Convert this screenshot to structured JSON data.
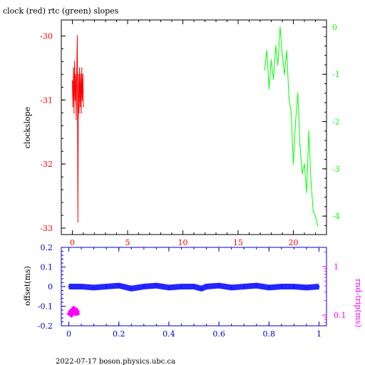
{
  "chart_data": [
    {
      "type": "line",
      "title": "clock (red) rtc (green) slopes",
      "xlabel": "",
      "ylabel": "clockslope",
      "y2label": "",
      "xlim": [
        -1,
        23
      ],
      "ylim": [
        -33.1,
        -29.75
      ],
      "y2lim": [
        -4.39,
        0.15
      ],
      "x_ticks": [
        "0",
        "5",
        "10",
        "15",
        "20"
      ],
      "y_ticks": [
        "-30",
        "-31",
        "-32",
        "-33"
      ],
      "y2_ticks": [
        "0",
        "-1",
        "-2",
        "-3",
        "-4"
      ],
      "colors": {
        "axes": "#000000",
        "clock": "#ff0000",
        "rtc": "#00ff00"
      },
      "series": [
        {
          "axis": "left",
          "x": [
            0.0,
            0.05,
            0.1,
            0.15,
            0.2,
            0.25,
            0.3,
            0.35,
            0.4,
            0.45,
            0.5,
            0.55,
            0.6,
            0.65,
            0.7,
            0.75,
            0.8,
            0.85,
            0.9,
            0.95,
            1.0
          ],
          "y": [
            -30.7,
            -31.1,
            -30.5,
            -31.2,
            -30.4,
            -31.0,
            -30.6,
            -31.3,
            -30.5,
            -30.0,
            -32.9,
            -30.6,
            -31.2,
            -30.5,
            -31.1,
            -30.6,
            -31.2,
            -30.5,
            -31.0,
            -30.6,
            -31.1
          ]
        },
        {
          "axis": "right",
          "x": [
            17.4,
            17.6,
            17.8,
            18.0,
            18.2,
            18.4,
            18.6,
            18.8,
            19.0,
            19.2,
            19.4,
            19.6,
            19.8,
            20.0,
            20.2,
            20.4,
            20.6,
            20.8,
            21.0,
            21.2,
            21.4,
            21.6,
            21.8,
            22.0,
            22.2
          ],
          "y": [
            -0.9,
            -0.5,
            -1.3,
            -0.7,
            -1.1,
            -0.4,
            -0.8,
            0.0,
            -0.6,
            -1.0,
            -0.5,
            -1.5,
            -1.8,
            -2.9,
            -2.0,
            -1.4,
            -2.5,
            -3.1,
            -2.9,
            -3.5,
            -2.2,
            -3.3,
            -3.9,
            -4.0,
            -4.2
          ]
        }
      ]
    },
    {
      "type": "scatter",
      "title": "",
      "xlabel": "",
      "ylabel": "offset(ms)",
      "y2label": "rnd-trip(ms)",
      "y2_scale": "log",
      "xlim": [
        -0.03,
        1.03
      ],
      "ylim": [
        -0.2,
        0.2
      ],
      "y2lim": [
        0.06,
        2.5
      ],
      "x_ticks": [
        "0",
        "0.2",
        "0.4",
        "0.6",
        "0.8",
        "1"
      ],
      "y_ticks": [
        "0.2",
        "0.1",
        "0",
        "-0.1",
        "-0.2"
      ],
      "y2_ticks": [
        "1",
        "0.1"
      ],
      "colors": {
        "axes": "#0000cc",
        "offset": "#0000ff",
        "rndtrip": "#ff00ff"
      },
      "series": [
        {
          "axis": "left",
          "x": [
            0.0,
            0.05,
            0.1,
            0.15,
            0.2,
            0.25,
            0.3,
            0.35,
            0.4,
            0.45,
            0.5,
            0.53,
            0.55,
            0.6,
            0.65,
            0.7,
            0.75,
            0.8,
            0.85,
            0.9,
            0.95,
            1.0
          ],
          "y": [
            0.0,
            0.0,
            -0.005,
            0.0,
            0.005,
            -0.01,
            0.0,
            0.005,
            -0.005,
            0.0,
            0.0,
            -0.01,
            0.0,
            0.005,
            -0.005,
            0.0,
            0.005,
            -0.005,
            0.0,
            0.0,
            -0.005,
            0.0
          ]
        },
        {
          "axis": "right",
          "x": [
            0.0,
            0.01,
            0.02,
            0.03,
            0.04
          ],
          "y": [
            0.12,
            0.11,
            0.125,
            0.115,
            0.12
          ]
        }
      ]
    }
  ],
  "footer": "2022-07-17 boson.physics.ubc.ca"
}
